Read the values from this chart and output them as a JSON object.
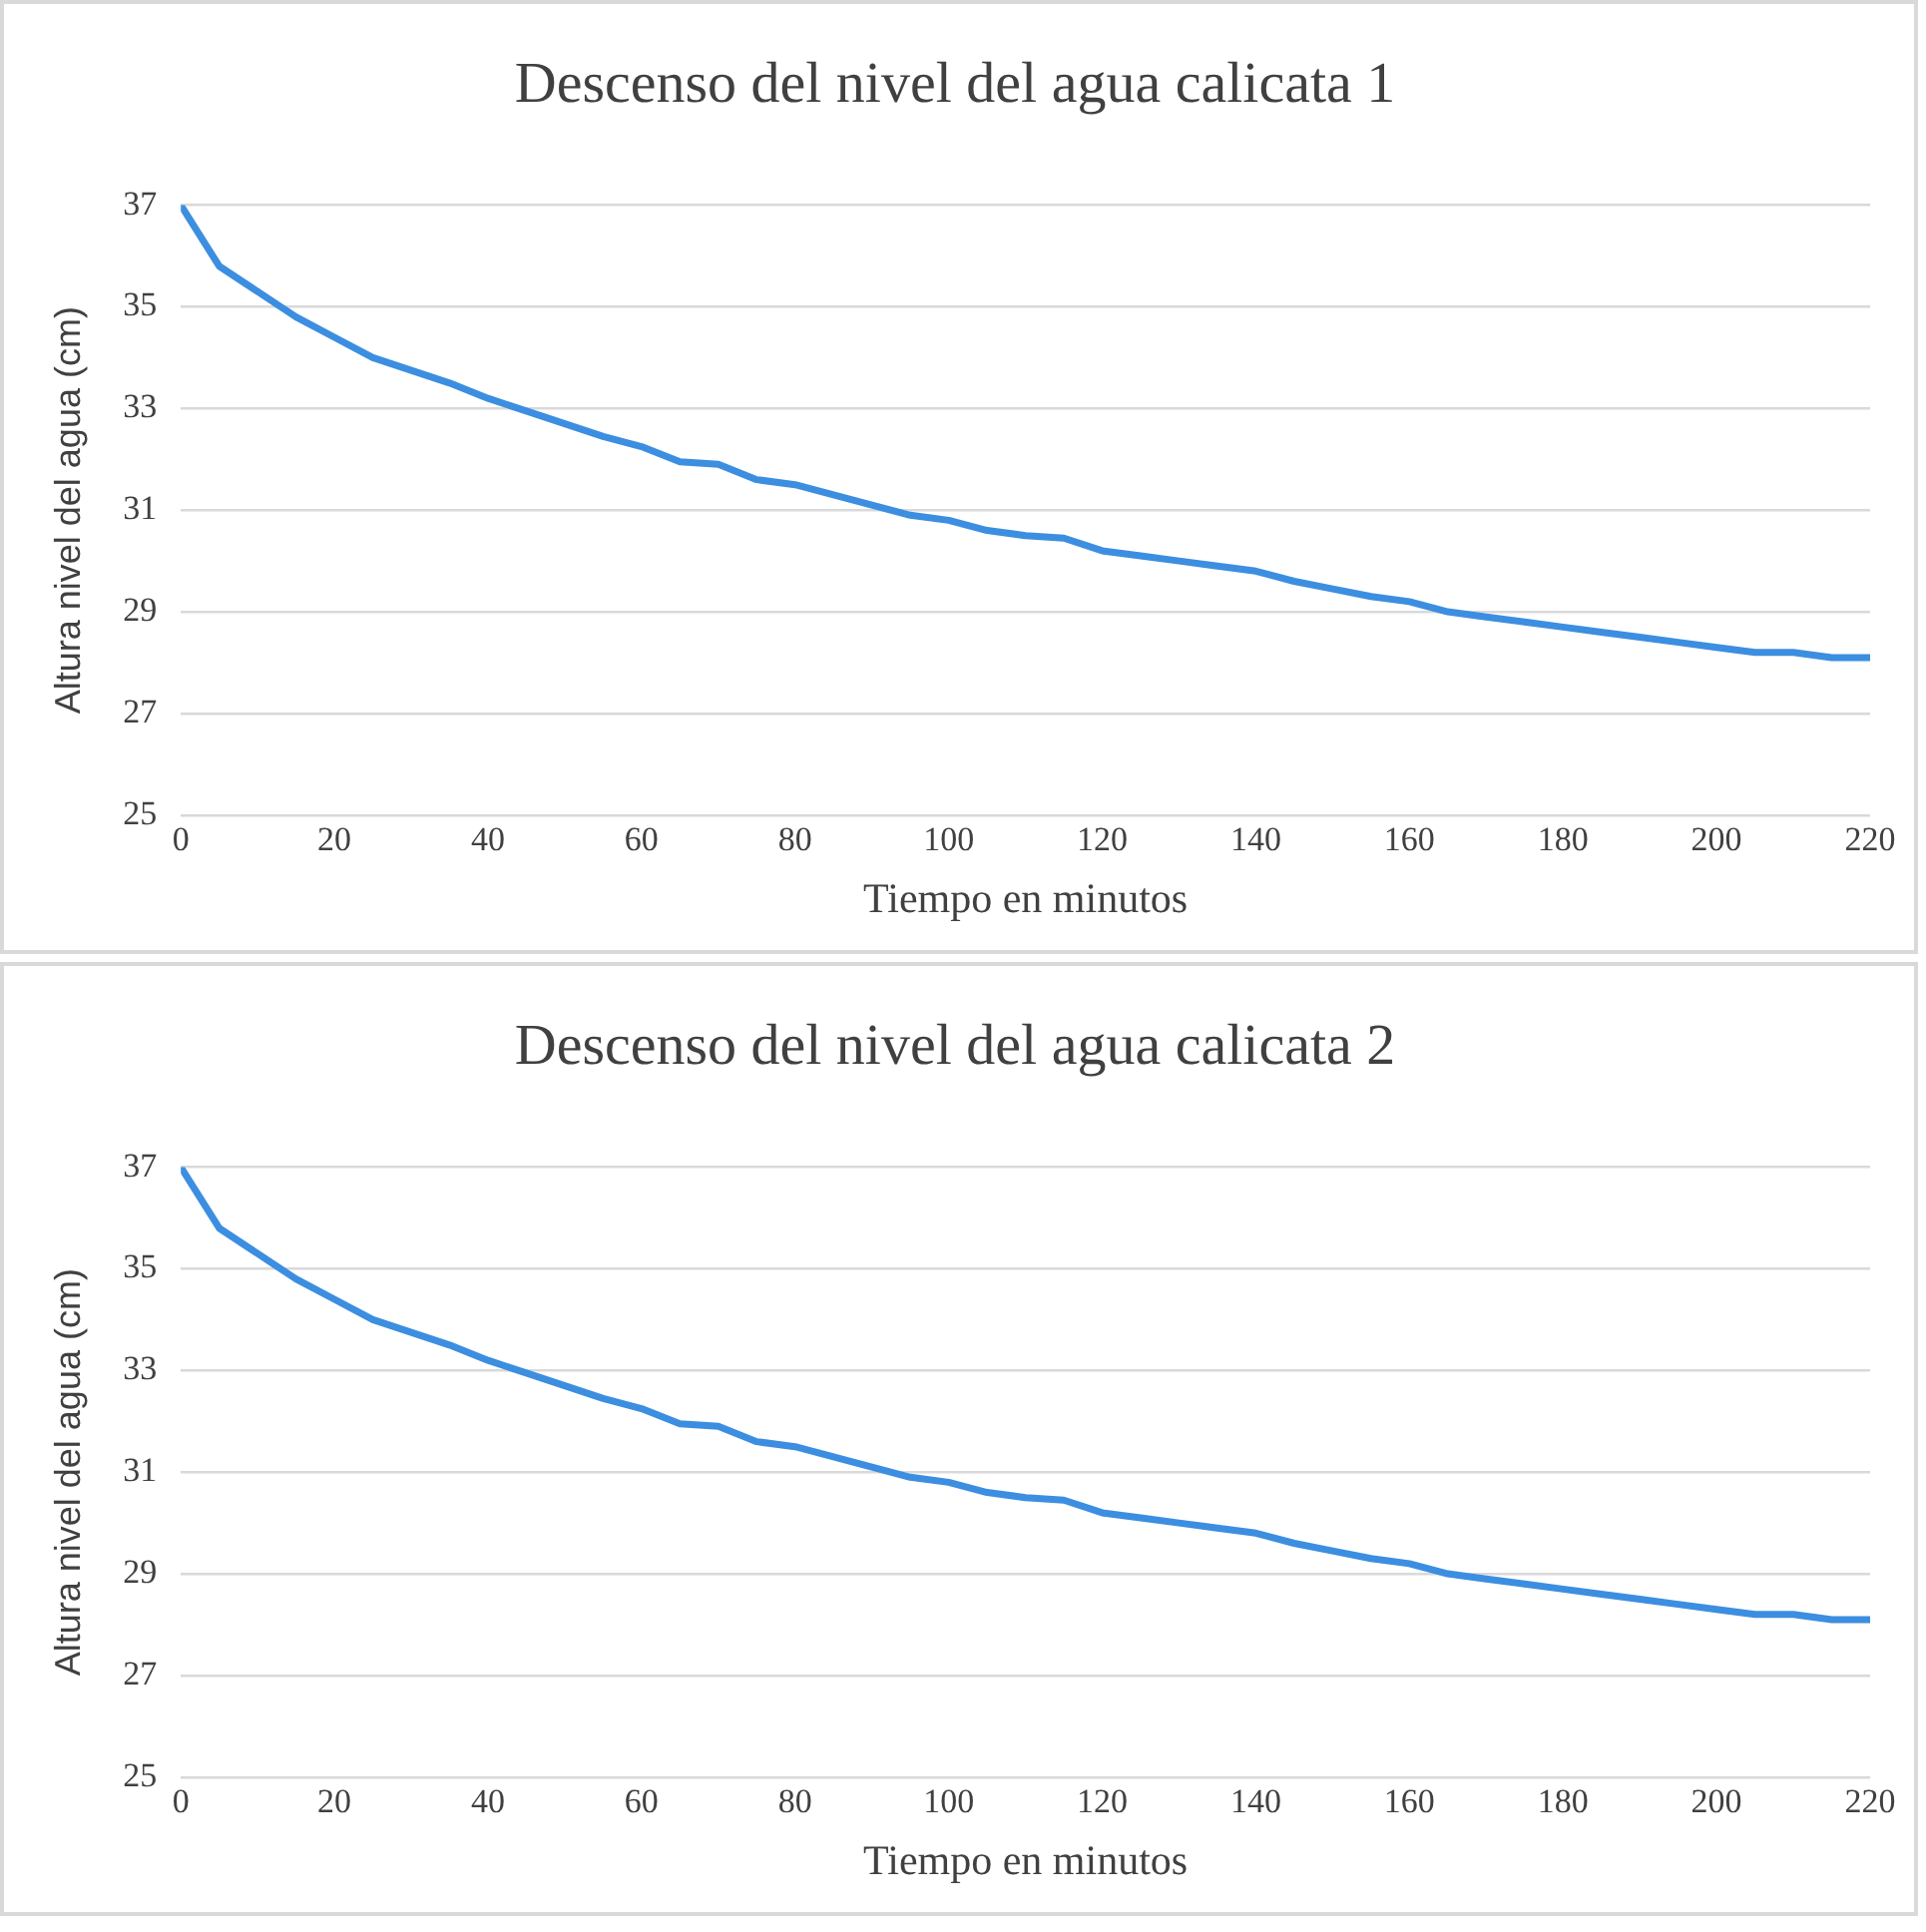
{
  "chart_data": [
    {
      "type": "line",
      "title": "Descenso del nivel del agua calicata 1",
      "xlabel": "Tiempo en minutos",
      "ylabel": "Altura nivel del agua (cm)",
      "x": [
        0,
        5,
        10,
        15,
        20,
        25,
        30,
        35,
        40,
        45,
        50,
        55,
        60,
        65,
        70,
        75,
        80,
        85,
        90,
        95,
        100,
        105,
        110,
        115,
        120,
        125,
        130,
        135,
        140,
        145,
        150,
        155,
        160,
        165,
        170,
        175,
        180,
        185,
        190,
        195,
        200,
        205,
        210,
        215,
        220
      ],
      "values": [
        37,
        35.8,
        35.3,
        34.8,
        34.4,
        34.0,
        33.75,
        33.5,
        33.2,
        32.95,
        32.7,
        32.45,
        32.25,
        31.95,
        31.9,
        31.6,
        31.5,
        31.3,
        31.1,
        30.9,
        30.8,
        30.6,
        30.5,
        30.45,
        30.2,
        30.1,
        30.0,
        29.9,
        29.8,
        29.6,
        29.45,
        29.3,
        29.2,
        29.0,
        28.9,
        28.8,
        28.7,
        28.6,
        28.5,
        28.4,
        28.3,
        28.2,
        28.2,
        28.1,
        28.1
      ],
      "color": "#3c8ee0",
      "xlim": [
        0,
        220
      ],
      "xticks": [
        0,
        20,
        40,
        60,
        80,
        100,
        120,
        140,
        160,
        180,
        200,
        220
      ],
      "ylim": [
        25,
        37
      ],
      "yticks": [
        25,
        27,
        29,
        31,
        33,
        35,
        37
      ],
      "grid": "y",
      "marker": "none",
      "line_style": "solid"
    },
    {
      "type": "line",
      "title": "Descenso del nivel del agua calicata 2",
      "xlabel": "Tiempo en minutos",
      "ylabel": "Altura nivel del agua (cm)",
      "x": [
        0,
        5,
        10,
        15,
        20,
        25,
        30,
        35,
        40,
        45,
        50,
        55,
        60,
        65,
        70,
        75,
        80,
        85,
        90,
        95,
        100,
        105,
        110,
        115,
        120,
        125,
        130,
        135,
        140,
        145,
        150,
        155,
        160,
        165,
        170,
        175,
        180,
        185,
        190,
        195,
        200,
        205,
        210,
        215,
        220
      ],
      "values": [
        37,
        35.8,
        35.3,
        34.8,
        34.4,
        34.0,
        33.75,
        33.5,
        33.2,
        32.95,
        32.7,
        32.45,
        32.25,
        31.95,
        31.9,
        31.6,
        31.5,
        31.3,
        31.1,
        30.9,
        30.8,
        30.6,
        30.5,
        30.45,
        30.2,
        30.1,
        30.0,
        29.9,
        29.8,
        29.6,
        29.45,
        29.3,
        29.2,
        29.0,
        28.9,
        28.8,
        28.7,
        28.6,
        28.5,
        28.4,
        28.3,
        28.2,
        28.2,
        28.1,
        28.1
      ],
      "color": "#3c8ee0",
      "xlim": [
        0,
        220
      ],
      "xticks": [
        0,
        20,
        40,
        60,
        80,
        100,
        120,
        140,
        160,
        180,
        200,
        220
      ],
      "ylim": [
        25,
        37
      ],
      "yticks": [
        25,
        27,
        29,
        31,
        33,
        35,
        37
      ],
      "grid": "y",
      "marker": "none",
      "line_style": "solid"
    }
  ]
}
